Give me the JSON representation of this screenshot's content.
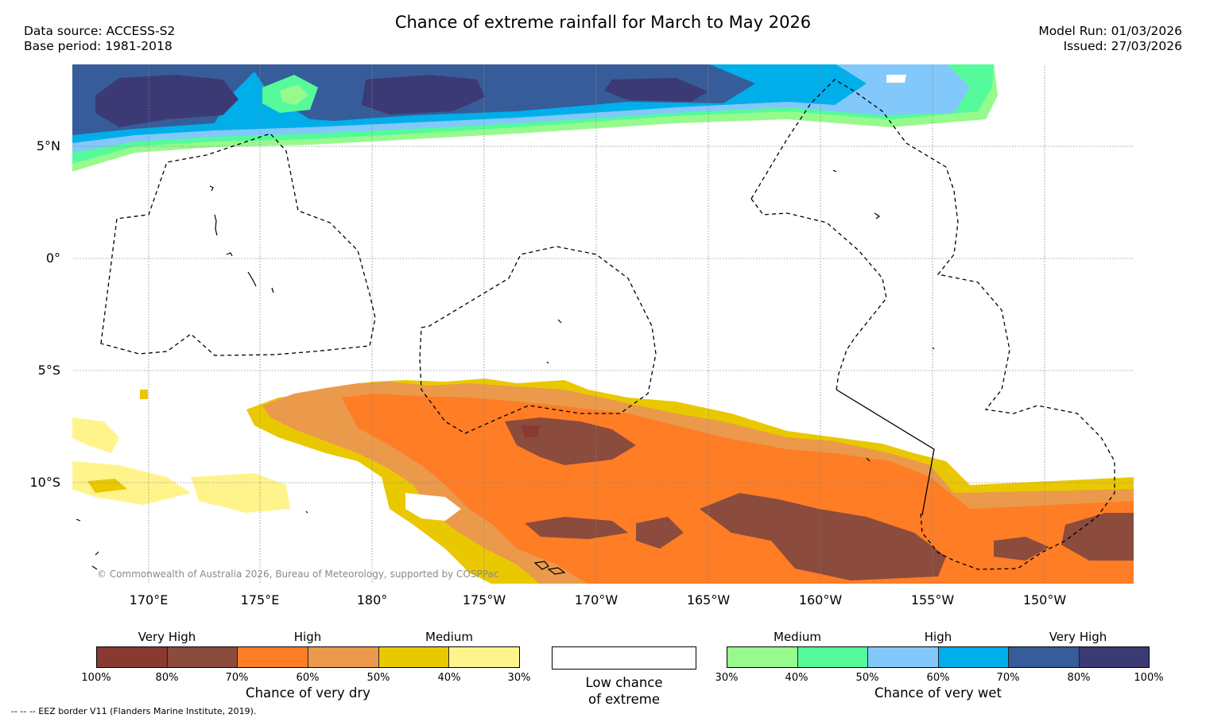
{
  "header": {
    "title": "Chance of extreme rainfall for March to May 2026",
    "data_source": "Data source: ACCESS-S2",
    "base_period": "Base period: 1981-2018",
    "model_run": "Model Run: 01/03/2026",
    "issued": "Issued: 27/03/2026"
  },
  "map": {
    "lat_labels": [
      "5°N",
      "0°",
      "5°S",
      "10°S"
    ],
    "lon_labels": [
      "170°E",
      "175°E",
      "180°",
      "175°W",
      "170°W",
      "165°W",
      "160°W",
      "155°W",
      "150°W"
    ],
    "credit": "© Commonwealth of Australia 2026, Bureau of Meteorology, supported by COSPPac"
  },
  "legend": {
    "dry": {
      "headings": [
        "Very High",
        "High",
        "Medium"
      ],
      "ticks": [
        "100%",
        "80%",
        "70%",
        "60%",
        "50%",
        "40%",
        "30%"
      ],
      "title": "Chance of very dry",
      "colors": [
        "#883a31",
        "#8b4b3d",
        "#ff7d25",
        "#ea9a4a",
        "#eac800",
        "#fff48c"
      ]
    },
    "low": {
      "line1": "Low chance",
      "line2": "of extreme"
    },
    "wet": {
      "headings": [
        "Medium",
        "High",
        "Very High"
      ],
      "ticks": [
        "30%",
        "40%",
        "50%",
        "60%",
        "70%",
        "80%",
        "100%"
      ],
      "title": "Chance of very wet",
      "colors": [
        "#96fa8c",
        "#55fa9b",
        "#82c8fa",
        "#00aeea",
        "#365d99",
        "#3b3a74"
      ]
    }
  },
  "footer": {
    "eez_note": "-- -- -- EEZ border V11 (Flanders Marine Institute, 2019)."
  }
}
